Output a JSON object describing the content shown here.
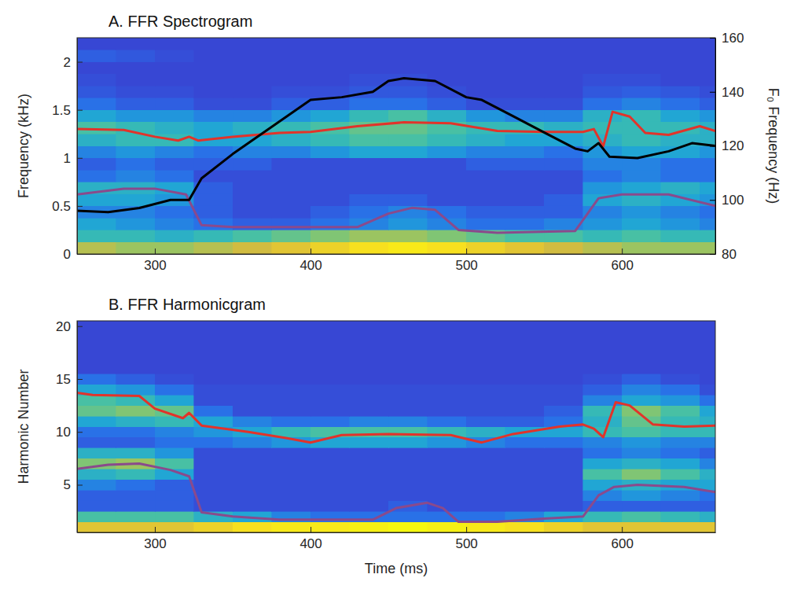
{
  "chart_data": [
    {
      "type": "heatmap",
      "title": "A. FFR Spectrogram",
      "y_label": "Frequency (kHz)",
      "y2_label": "F₀ Frequency (Hz)",
      "xlim": [
        250,
        660
      ],
      "xticks": [
        300,
        400,
        500,
        600
      ],
      "ylim": [
        0,
        2.25
      ],
      "yticks": [
        0,
        0.5,
        1,
        1.5,
        2
      ],
      "y2lim": [
        80,
        160
      ],
      "y2ticks": [
        80,
        100,
        120,
        140,
        160
      ],
      "heatmap": {
        "color_range": [
          0,
          1
        ],
        "x_edges": [
          250,
          275,
          300,
          325,
          350,
          375,
          400,
          425,
          450,
          475,
          500,
          525,
          550,
          575,
          600,
          625,
          650,
          660
        ],
        "y_edges": [
          0,
          0.125,
          0.25,
          0.375,
          0.5,
          0.625,
          0.75,
          0.875,
          1,
          1.125,
          1.25,
          1.375,
          1.5,
          1.625,
          1.75,
          1.875,
          2,
          2.125,
          2.25
        ],
        "values": [
          [
            0.65,
            0.6,
            0.6,
            0.65,
            0.7,
            0.75,
            0.8,
            0.85,
            0.9,
            0.85,
            0.8,
            0.75,
            0.7,
            0.65,
            0.6,
            0.6,
            0.6
          ],
          [
            0.4,
            0.4,
            0.35,
            0.4,
            0.45,
            0.5,
            0.55,
            0.6,
            0.6,
            0.55,
            0.5,
            0.45,
            0.45,
            0.4,
            0.45,
            0.4,
            0.4
          ],
          [
            0.3,
            0.25,
            0.2,
            0.15,
            0.1,
            0.1,
            0.15,
            0.2,
            0.25,
            0.2,
            0.15,
            0.15,
            0.2,
            0.25,
            0.3,
            0.25,
            0.2
          ],
          [
            0.2,
            0.2,
            0.15,
            0.1,
            0.05,
            0.05,
            0.1,
            0.15,
            0.2,
            0.15,
            0.1,
            0.1,
            0.1,
            0.2,
            0.25,
            0.2,
            0.15
          ],
          [
            0.3,
            0.3,
            0.25,
            0.1,
            0.05,
            0.05,
            0.05,
            0.1,
            0.1,
            0.05,
            0.05,
            0.05,
            0.1,
            0.3,
            0.35,
            0.3,
            0.25
          ],
          [
            0.35,
            0.35,
            0.3,
            0.1,
            0.05,
            0.05,
            0.05,
            0.05,
            0.05,
            0.05,
            0.05,
            0.05,
            0.05,
            0.25,
            0.3,
            0.35,
            0.3
          ],
          [
            0.15,
            0.2,
            0.15,
            0.05,
            0.05,
            0.05,
            0.05,
            0.05,
            0.05,
            0.05,
            0.05,
            0.05,
            0.05,
            0.15,
            0.2,
            0.15,
            0.15
          ],
          [
            0.1,
            0.15,
            0.1,
            0.1,
            0.1,
            0.05,
            0.05,
            0.05,
            0.05,
            0.05,
            0.1,
            0.1,
            0.1,
            0.2,
            0.2,
            0.15,
            0.15
          ],
          [
            0.2,
            0.25,
            0.2,
            0.15,
            0.2,
            0.2,
            0.25,
            0.3,
            0.3,
            0.25,
            0.2,
            0.2,
            0.15,
            0.25,
            0.3,
            0.3,
            0.25
          ],
          [
            0.35,
            0.4,
            0.4,
            0.3,
            0.3,
            0.35,
            0.4,
            0.45,
            0.45,
            0.4,
            0.35,
            0.3,
            0.3,
            0.35,
            0.4,
            0.35,
            0.35
          ],
          [
            0.45,
            0.4,
            0.35,
            0.3,
            0.35,
            0.4,
            0.45,
            0.5,
            0.5,
            0.45,
            0.4,
            0.4,
            0.35,
            0.4,
            0.4,
            0.4,
            0.35
          ],
          [
            0.3,
            0.25,
            0.25,
            0.2,
            0.2,
            0.25,
            0.3,
            0.4,
            0.45,
            0.35,
            0.25,
            0.2,
            0.2,
            0.35,
            0.4,
            0.3,
            0.25
          ],
          [
            0.15,
            0.1,
            0.1,
            0.05,
            0.05,
            0.1,
            0.1,
            0.15,
            0.15,
            0.1,
            0.05,
            0.05,
            0.05,
            0.15,
            0.2,
            0.15,
            0.1
          ],
          [
            0.08,
            0.05,
            0.05,
            0.03,
            0.03,
            0.05,
            0.05,
            0.08,
            0.08,
            0.05,
            0.03,
            0.03,
            0.03,
            0.08,
            0.1,
            0.08,
            0.05
          ],
          [
            0.05,
            0.03,
            0.03,
            0.03,
            0.03,
            0.03,
            0.03,
            0.05,
            0.05,
            0.03,
            0.03,
            0.03,
            0.03,
            0.05,
            0.05,
            0.03,
            0.03
          ],
          [
            0.03,
            0.03,
            0.03,
            0.03,
            0.03,
            0.03,
            0.03,
            0.03,
            0.03,
            0.03,
            0.03,
            0.03,
            0.03,
            0.03,
            0.03,
            0.03,
            0.03
          ],
          [
            0.1,
            0.08,
            0.05,
            0.03,
            0.03,
            0.03,
            0.03,
            0.03,
            0.03,
            0.03,
            0.03,
            0.03,
            0.03,
            0.03,
            0.03,
            0.03,
            0.03
          ],
          [
            0.03,
            0.03,
            0.03,
            0.03,
            0.03,
            0.03,
            0.03,
            0.03,
            0.03,
            0.03,
            0.03,
            0.03,
            0.03,
            0.03,
            0.03,
            0.03,
            0.03
          ]
        ]
      },
      "series": [
        {
          "type": "line",
          "color": "#e2332a",
          "x": [
            250,
            280,
            300,
            315,
            322,
            328,
            350,
            380,
            400,
            430,
            460,
            490,
            520,
            550,
            575,
            582,
            588,
            594,
            605,
            615,
            630,
            650,
            660
          ],
          "values": [
            1.3,
            1.29,
            1.22,
            1.18,
            1.22,
            1.18,
            1.22,
            1.26,
            1.27,
            1.33,
            1.37,
            1.36,
            1.28,
            1.27,
            1.27,
            1.3,
            1.12,
            1.48,
            1.43,
            1.26,
            1.24,
            1.33,
            1.28
          ]
        },
        {
          "type": "line",
          "color": "#8a4a8c",
          "x": [
            250,
            280,
            300,
            320,
            330,
            350,
            400,
            430,
            450,
            465,
            480,
            495,
            520,
            570,
            585,
            600,
            630,
            660
          ],
          "values": [
            0.62,
            0.68,
            0.68,
            0.62,
            0.3,
            0.28,
            0.28,
            0.28,
            0.42,
            0.48,
            0.46,
            0.25,
            0.22,
            0.24,
            0.58,
            0.62,
            0.62,
            0.5
          ]
        },
        {
          "type": "line",
          "color": "#000000",
          "axis": "y2",
          "x": [
            250,
            270,
            290,
            310,
            322,
            330,
            350,
            370,
            390,
            400,
            420,
            440,
            450,
            460,
            480,
            500,
            510,
            530,
            550,
            570,
            578,
            585,
            592,
            610,
            630,
            645,
            660
          ],
          "values": [
            96,
            95.5,
            97,
            100,
            100,
            108,
            117,
            125,
            133,
            137,
            138,
            140,
            144,
            145,
            144,
            138,
            137,
            131,
            125,
            119,
            118,
            121,
            116,
            115.5,
            118,
            121,
            120
          ]
        }
      ]
    },
    {
      "type": "heatmap",
      "title": "B. FFR Harmonicgram",
      "x_label": "Time (ms)",
      "y_label": "Harmonic Number",
      "xlim": [
        250,
        660
      ],
      "xticks": [
        300,
        400,
        500,
        600
      ],
      "ylim": [
        0.5,
        20.5
      ],
      "yticks": [
        5,
        10,
        15,
        20
      ],
      "heatmap": {
        "color_range": [
          0,
          1
        ],
        "x_edges": [
          250,
          275,
          300,
          325,
          350,
          375,
          400,
          425,
          450,
          475,
          500,
          525,
          550,
          575,
          600,
          625,
          650,
          660
        ],
        "y_edges": [
          0.5,
          1.5,
          2.5,
          3.5,
          4.5,
          5.5,
          6.5,
          7.5,
          8.5,
          9.5,
          10.5,
          11.5,
          12.5,
          13.5,
          14.5,
          15.5,
          16.5,
          17.5,
          18.5,
          19.5,
          20.5
        ],
        "values": [
          [
            0.75,
            0.75,
            0.75,
            0.8,
            0.85,
            0.9,
            0.9,
            0.95,
            1,
            0.95,
            0.9,
            0.85,
            0.8,
            0.75,
            0.75,
            0.75,
            0.75
          ],
          [
            0.45,
            0.45,
            0.45,
            0.35,
            0.3,
            0.2,
            0.15,
            0.15,
            0.15,
            0.15,
            0.15,
            0.2,
            0.3,
            0.4,
            0.45,
            0.4,
            0.35
          ],
          [
            0.1,
            0.1,
            0.1,
            0.05,
            0.05,
            0.05,
            0.05,
            0.05,
            0.1,
            0.05,
            0.05,
            0.05,
            0.05,
            0.1,
            0.1,
            0.1,
            0.1
          ],
          [
            0.1,
            0.1,
            0.1,
            0.05,
            0.05,
            0.05,
            0.05,
            0.05,
            0.05,
            0.05,
            0.05,
            0.05,
            0.05,
            0.2,
            0.25,
            0.2,
            0.15
          ],
          [
            0.2,
            0.15,
            0.1,
            0.05,
            0.05,
            0.05,
            0.05,
            0.05,
            0.05,
            0.05,
            0.05,
            0.05,
            0.05,
            0.3,
            0.35,
            0.3,
            0.3
          ],
          [
            0.35,
            0.4,
            0.3,
            0.05,
            0.05,
            0.05,
            0.05,
            0.05,
            0.05,
            0.05,
            0.05,
            0.05,
            0.05,
            0.45,
            0.55,
            0.45,
            0.35
          ],
          [
            0.55,
            0.6,
            0.45,
            0.05,
            0.05,
            0.05,
            0.05,
            0.05,
            0.05,
            0.05,
            0.05,
            0.05,
            0.05,
            0.3,
            0.35,
            0.3,
            0.2
          ],
          [
            0.35,
            0.35,
            0.25,
            0.05,
            0.05,
            0.05,
            0.05,
            0.05,
            0.05,
            0.05,
            0.05,
            0.05,
            0.05,
            0.15,
            0.2,
            0.15,
            0.1
          ],
          [
            0.1,
            0.1,
            0.15,
            0.15,
            0.2,
            0.25,
            0.3,
            0.3,
            0.3,
            0.25,
            0.2,
            0.15,
            0.15,
            0.2,
            0.25,
            0.2,
            0.2
          ],
          [
            0.15,
            0.15,
            0.2,
            0.25,
            0.3,
            0.4,
            0.45,
            0.45,
            0.45,
            0.4,
            0.35,
            0.3,
            0.3,
            0.4,
            0.45,
            0.4,
            0.4
          ],
          [
            0.3,
            0.35,
            0.4,
            0.3,
            0.2,
            0.15,
            0.15,
            0.2,
            0.2,
            0.15,
            0.1,
            0.1,
            0.15,
            0.35,
            0.5,
            0.4,
            0.35
          ],
          [
            0.5,
            0.55,
            0.5,
            0.15,
            0.05,
            0.05,
            0.05,
            0.05,
            0.05,
            0.05,
            0.05,
            0.05,
            0.1,
            0.4,
            0.55,
            0.45,
            0.3
          ],
          [
            0.45,
            0.4,
            0.3,
            0.05,
            0.05,
            0.05,
            0.05,
            0.05,
            0.05,
            0.05,
            0.05,
            0.05,
            0.05,
            0.2,
            0.3,
            0.25,
            0.15
          ],
          [
            0.3,
            0.25,
            0.15,
            0.05,
            0.05,
            0.05,
            0.05,
            0.05,
            0.05,
            0.05,
            0.05,
            0.05,
            0.05,
            0.1,
            0.2,
            0.15,
            0.05
          ],
          [
            0.15,
            0.1,
            0.05,
            0.03,
            0.03,
            0.03,
            0.03,
            0.03,
            0.03,
            0.03,
            0.03,
            0.03,
            0.03,
            0.05,
            0.1,
            0.05,
            0.03
          ],
          [
            0.03,
            0.03,
            0.03,
            0.03,
            0.03,
            0.03,
            0.03,
            0.03,
            0.03,
            0.03,
            0.03,
            0.03,
            0.03,
            0.03,
            0.03,
            0.03,
            0.03
          ],
          [
            0.03,
            0.03,
            0.03,
            0.03,
            0.03,
            0.03,
            0.03,
            0.03,
            0.03,
            0.03,
            0.03,
            0.03,
            0.03,
            0.03,
            0.03,
            0.03,
            0.03
          ],
          [
            0.03,
            0.03,
            0.03,
            0.03,
            0.03,
            0.03,
            0.03,
            0.03,
            0.03,
            0.03,
            0.03,
            0.03,
            0.03,
            0.03,
            0.03,
            0.03,
            0.03
          ],
          [
            0.03,
            0.03,
            0.03,
            0.03,
            0.03,
            0.03,
            0.03,
            0.03,
            0.03,
            0.03,
            0.03,
            0.03,
            0.03,
            0.03,
            0.03,
            0.03,
            0.03
          ],
          [
            0.03,
            0.03,
            0.03,
            0.03,
            0.03,
            0.03,
            0.03,
            0.03,
            0.03,
            0.03,
            0.03,
            0.03,
            0.03,
            0.03,
            0.03,
            0.03,
            0.03
          ]
        ]
      },
      "series": [
        {
          "type": "line",
          "color": "#e2332a",
          "x": [
            250,
            260,
            290,
            300,
            318,
            322,
            330,
            360,
            385,
            400,
            420,
            450,
            490,
            510,
            530,
            560,
            575,
            582,
            588,
            596,
            605,
            620,
            640,
            660
          ],
          "values": [
            13.7,
            13.5,
            13.4,
            12.2,
            11.3,
            11.8,
            10.6,
            10.0,
            9.4,
            9.0,
            9.7,
            9.8,
            9.7,
            9.0,
            9.8,
            10.5,
            10.7,
            10.3,
            9.5,
            12.8,
            12.5,
            10.7,
            10.5,
            10.6
          ]
        },
        {
          "type": "line",
          "color": "#8a4a8c",
          "x": [
            250,
            270,
            290,
            310,
            322,
            330,
            350,
            380,
            440,
            455,
            475,
            485,
            495,
            520,
            550,
            575,
            585,
            595,
            610,
            640,
            660
          ],
          "values": [
            6.5,
            6.9,
            7.0,
            6.4,
            5.8,
            2.4,
            2.0,
            1.7,
            1.7,
            2.8,
            3.3,
            2.8,
            1.5,
            1.5,
            1.8,
            2.0,
            4.0,
            4.8,
            5.0,
            4.8,
            4.3
          ]
        }
      ]
    }
  ]
}
